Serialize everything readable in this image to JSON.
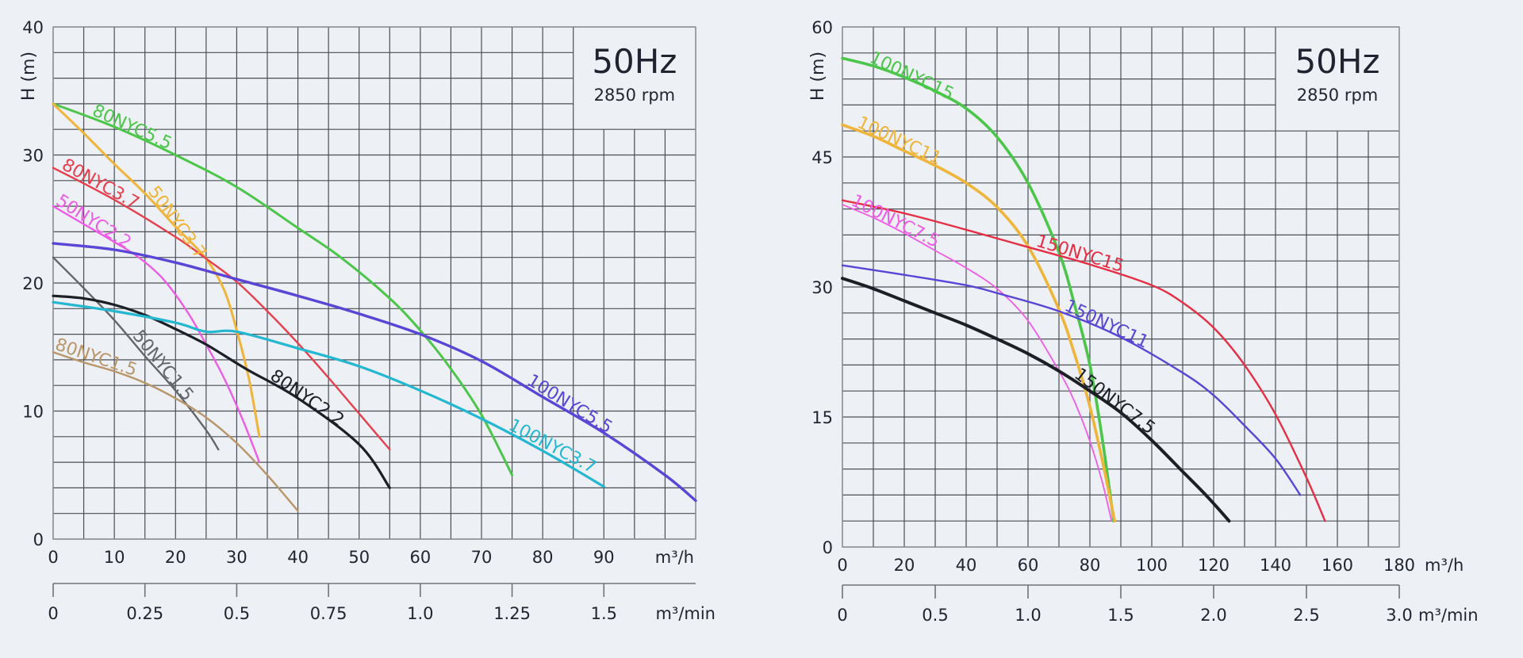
{
  "chart_data": [
    {
      "type": "line",
      "title": "50Hz",
      "subtitle": "2850 rpm",
      "xlabel": "m³/h",
      "ylabel": "H (m)",
      "secondary_xlabel": "m³/min",
      "xlim": [
        0,
        105
      ],
      "ylim": [
        0,
        40
      ],
      "x_grid_step": 5,
      "y_grid_step": 2,
      "x_ticks": [
        0,
        10,
        20,
        30,
        40,
        50,
        60,
        70,
        80,
        90
      ],
      "x_tick_labels": [
        "0",
        "10",
        "20",
        "30",
        "40",
        "50",
        "60",
        "70",
        "80",
        "90"
      ],
      "y_ticks": [
        0,
        10,
        20,
        30,
        40
      ],
      "y_tick_labels": [
        "0",
        "10",
        "20",
        "30",
        "40"
      ],
      "secondary_ticks": [
        0,
        0.25,
        0.5,
        0.75,
        1.0,
        1.25,
        1.5
      ],
      "secondary_tick_labels": [
        "0",
        "0.25",
        "0.5",
        "0.75",
        "1.0",
        "1.25",
        "1.5"
      ],
      "grid": true,
      "legend": "inline-labels",
      "info_box": {
        "position": "top-right",
        "x_from": 85,
        "y_from": 32
      },
      "series": [
        {
          "name": "80NYC5.5",
          "color": "#4cc64a",
          "label_x": [
            6,
            23
          ],
          "x": [
            0,
            10,
            20,
            30,
            40,
            47,
            55,
            60,
            65,
            70,
            75
          ],
          "y": [
            34,
            32.2,
            30,
            27.5,
            24.3,
            22,
            18.8,
            16.3,
            13.3,
            9.7,
            5
          ]
        },
        {
          "name": "50NYC3.7",
          "color": "#efb43a",
          "label_x": [
            15,
            29
          ],
          "x": [
            0,
            5,
            10,
            15,
            20,
            25,
            28,
            30,
            32,
            33.7
          ],
          "y": [
            34,
            31.7,
            29.3,
            27,
            24.4,
            21.9,
            19.4,
            16.3,
            12.5,
            8
          ]
        },
        {
          "name": "80NYC3.7",
          "color": "#e6404f",
          "label_x": [
            1,
            15
          ],
          "x": [
            0,
            10,
            20,
            25,
            30,
            35,
            40,
            45,
            50,
            55
          ],
          "y": [
            29,
            26.5,
            23.6,
            21.9,
            20.1,
            17.8,
            15.3,
            12.6,
            9.8,
            7
          ]
        },
        {
          "name": "50NYC2.2",
          "color": "#ee5ce6",
          "label_x": [
            0,
            16
          ],
          "x": [
            0,
            5,
            10,
            14,
            18,
            22,
            25,
            28,
            31,
            33.7
          ],
          "y": [
            26,
            24.6,
            23.2,
            22,
            20.3,
            17.7,
            15.2,
            12.5,
            9.3,
            6
          ]
        },
        {
          "name": "100NYC5.5",
          "color": "#5b45d6",
          "label_x": [
            77,
            95
          ],
          "x": [
            0,
            10,
            20,
            30,
            40,
            50,
            60,
            70,
            80,
            90,
            100,
            105
          ],
          "y": [
            23.1,
            22.6,
            21.6,
            20.3,
            19,
            17.6,
            16,
            13.9,
            11.1,
            8.3,
            5,
            3
          ]
        },
        {
          "name": "50NYC1.5",
          "color": "#62676c",
          "label_x": [
            12.5,
            26
          ],
          "x": [
            0,
            5,
            10,
            15,
            20,
            25,
            27
          ],
          "y": [
            22,
            19.6,
            17.1,
            14.3,
            11.6,
            8.5,
            7
          ]
        },
        {
          "name": "80NYC2.2",
          "color": "#1d1f27",
          "label_x": [
            35,
            50
          ],
          "x": [
            0,
            5,
            10,
            15,
            20,
            25,
            31.5,
            40,
            50,
            55
          ],
          "y": [
            19,
            18.8,
            18.3,
            17.5,
            16.4,
            15.2,
            13.3,
            11,
            7.4,
            4
          ]
        },
        {
          "name": "100NYC3.7",
          "color": "#23b7d1",
          "label_x": [
            74,
            91
          ],
          "x": [
            0,
            10,
            20,
            25,
            30,
            40,
            50,
            60,
            70,
            80,
            90
          ],
          "y": [
            18.5,
            17.8,
            16.9,
            16.2,
            16.2,
            14.9,
            13.5,
            11.6,
            9.4,
            6.9,
            4.1
          ]
        },
        {
          "name": "80NYC1.5",
          "color": "#b9956a",
          "label_x": [
            0,
            15
          ],
          "x": [
            0,
            5,
            10,
            15,
            20,
            25,
            30,
            35,
            40
          ],
          "y": [
            14.6,
            13.8,
            13.1,
            12.2,
            11,
            9.5,
            7.5,
            5,
            2.2
          ]
        }
      ]
    },
    {
      "type": "line",
      "title": "50Hz",
      "subtitle": "2850 rpm",
      "xlabel": "m³/h",
      "ylabel": "H (m)",
      "secondary_xlabel": "m³/min",
      "xlim": [
        0,
        180
      ],
      "ylim": [
        0,
        60
      ],
      "x_grid_step": 10,
      "y_grid_step": 3,
      "x_ticks": [
        0,
        20,
        40,
        60,
        80,
        100,
        120,
        140,
        160,
        180
      ],
      "x_tick_labels": [
        "0",
        "20",
        "40",
        "60",
        "80",
        "100",
        "120",
        "140",
        "160",
        "180"
      ],
      "y_ticks": [
        0,
        15,
        30,
        45,
        60
      ],
      "y_tick_labels": [
        "0",
        "15",
        "30",
        "45",
        "60"
      ],
      "secondary_ticks": [
        0,
        0.5,
        1.0,
        1.5,
        2.0,
        2.5,
        3.0
      ],
      "secondary_tick_labels": [
        "0",
        "0.5",
        "1.0",
        "1.5",
        "2.0",
        "2.5",
        "3.0"
      ],
      "grid": true,
      "legend": "inline-labels",
      "info_box": {
        "position": "top-right",
        "x_from": 140,
        "y_from": 48
      },
      "series": [
        {
          "name": "100NYC15",
          "color": "#4cc64a",
          "label_x": [
            8,
            42
          ],
          "x": [
            0,
            10,
            20,
            30,
            40,
            50,
            60,
            70,
            75,
            80,
            84,
            87.7
          ],
          "y": [
            56.4,
            55.5,
            54.2,
            52.6,
            50.6,
            47.3,
            42,
            34,
            28,
            21,
            12.5,
            3
          ]
        },
        {
          "name": "100NYC11",
          "color": "#efb43a",
          "label_x": [
            4,
            34
          ],
          "x": [
            0,
            10,
            20,
            30,
            40,
            50,
            60,
            70,
            75,
            80,
            84,
            88
          ],
          "y": [
            48.7,
            47.4,
            45.7,
            44,
            42,
            39.2,
            34.7,
            27.4,
            22.3,
            16.2,
            10,
            3
          ]
        },
        {
          "name": "150NYC15",
          "color": "#e62e45",
          "label_x": [
            62,
            93
          ],
          "x": [
            0,
            20,
            40,
            60,
            80,
            100,
            110,
            120,
            130,
            140,
            150,
            156
          ],
          "y": [
            40,
            38.5,
            36.6,
            34.6,
            32.6,
            30.2,
            28.2,
            25.3,
            21,
            15.3,
            8,
            3
          ]
        },
        {
          "name": "100NYC7.5",
          "color": "#ee5ce6",
          "label_x": [
            2,
            32
          ],
          "x": [
            0,
            10,
            20,
            30,
            40,
            50,
            60,
            70,
            75,
            80,
            84,
            87
          ],
          "y": [
            39.5,
            38,
            36.2,
            34.2,
            32.2,
            29.8,
            26.1,
            20.3,
            16.8,
            12.2,
            7.5,
            3
          ]
        },
        {
          "name": "150NYC11",
          "color": "#5b45d6",
          "label_x": [
            71,
            100
          ],
          "x": [
            0,
            20,
            40,
            50,
            70,
            90,
            110,
            120,
            130,
            140,
            148
          ],
          "y": [
            32.5,
            31.4,
            30.2,
            29.3,
            27.2,
            24.2,
            20.1,
            17.5,
            14,
            10.2,
            6
          ]
        },
        {
          "name": "150NYC7.5",
          "color": "#1d1f27",
          "label_x": [
            74,
            100
          ],
          "x": [
            0,
            10,
            20,
            30,
            40,
            50,
            60,
            70,
            80,
            90,
            100,
            110,
            118,
            125
          ],
          "y": [
            31,
            29.8,
            28.4,
            27,
            25.6,
            24,
            22.3,
            20.3,
            18,
            15.5,
            12.3,
            8.7,
            5.8,
            3
          ]
        }
      ]
    }
  ]
}
